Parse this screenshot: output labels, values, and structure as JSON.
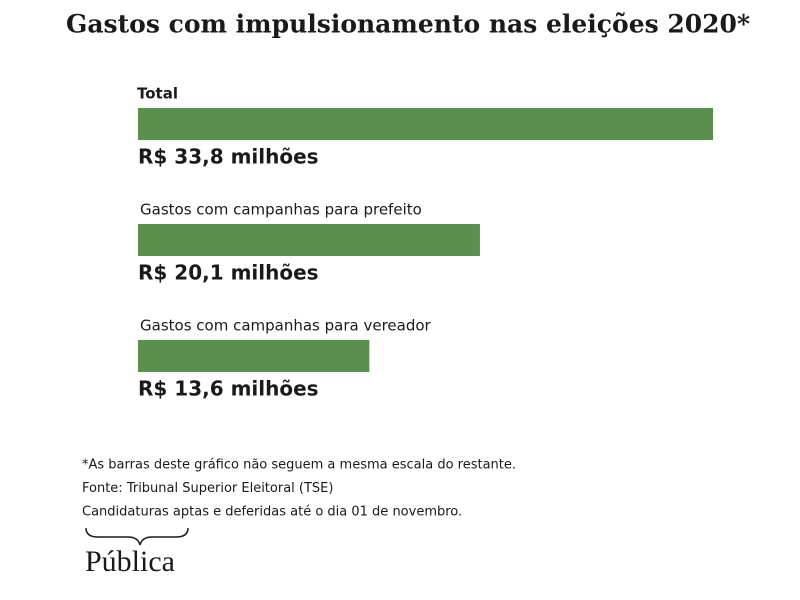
{
  "chart_data": {
    "type": "bar",
    "orientation": "horizontal",
    "title": "Gastos com impulsionamento nas eleições 2020*",
    "categories": [
      "Total",
      "Gastos com campanhas para prefeito",
      "Gastos com campanhas para vereador"
    ],
    "values": [
      33.8,
      20.1,
      13.6
    ],
    "value_labels": [
      "R$ 33,8 milhões",
      "R$ 20,1 milhões",
      "R$ 13,6 milhões"
    ],
    "color": "#5b8f4e",
    "notes": [
      "*As barras deste gráfico não seguem a mesma escala do restante.",
      "Fonte: Tribunal Superior Eleitoral (TSE)",
      "Candidaturas aptas e deferidas até o dia 01 de novembro."
    ],
    "logo": "Pública"
  }
}
